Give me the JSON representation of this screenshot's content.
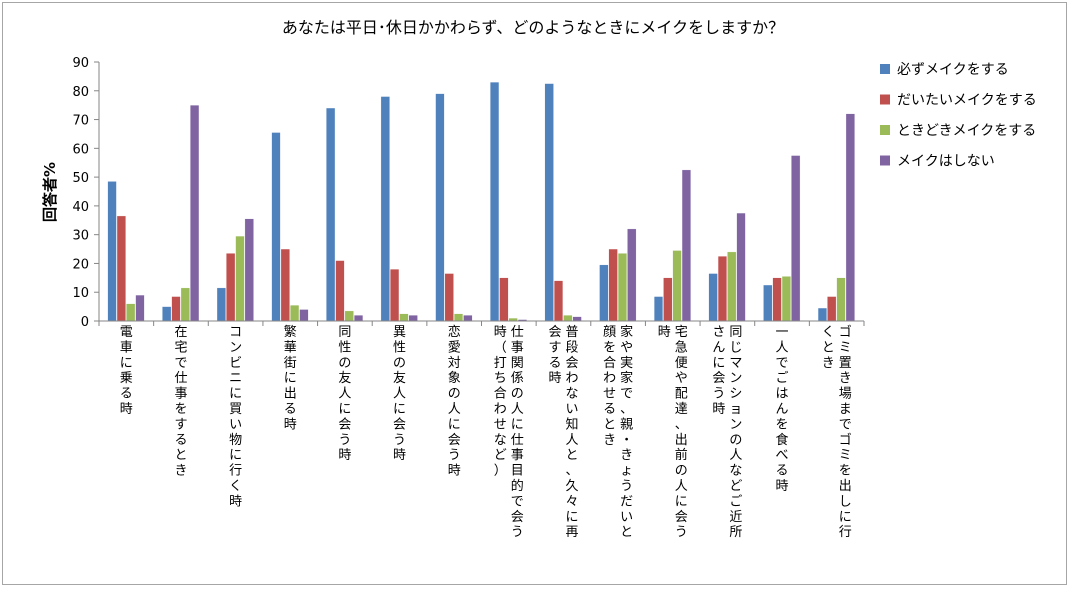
{
  "chart_data": {
    "type": "bar",
    "title": "あなたは平日･休日かかわらず、どのようなときにメイクをしますか？",
    "ylabel": "回答者%",
    "xlabel": "",
    "ylim": [
      0,
      90
    ],
    "yticks": [
      0,
      10,
      20,
      30,
      40,
      50,
      60,
      70,
      80,
      90
    ],
    "grid": false,
    "legend_position": "right",
    "categories": [
      "電車に乗る時",
      "在宅で仕事をするとき",
      "コンビニに買い物に行く時",
      "繁華街に出る時",
      "同性の友人に会う時",
      "異性の友人に会う時",
      "恋愛対象の人に会う時",
      "仕事関係の人に仕事目的で会う時（打ち合わせなど）",
      "普段会わない知人と、久々に再会する時",
      "家や実家で、親・きょうだいと顔を合わせるとき",
      "宅急便や配達、出前の人に会う時",
      "同じマンションの人などご近所さんに会う時",
      "一人でごはんを食べる時",
      "ゴミ置き場までゴミを出しに行くとき"
    ],
    "category_label_lines": [
      [
        "電車に乗る時"
      ],
      [
        "在宅で仕事をするとき"
      ],
      [
        "コンビニに買い物に行く時"
      ],
      [
        "繁華街に出る時"
      ],
      [
        "同性の友人に会う時"
      ],
      [
        "異性の友人に会う時"
      ],
      [
        "恋愛対象の人に会う時"
      ],
      [
        "仕事関係の人に仕事目的で会う",
        "時（打ち合わせなど）"
      ],
      [
        "普段会わない知人と、久々に再",
        "会する時"
      ],
      [
        "家や実家で、親・きょうだいと",
        "顔を合わせるとき"
      ],
      [
        "宅急便や配達、出前の人に会う",
        "時"
      ],
      [
        "同じマンションの人などご近所",
        "さんに会う時"
      ],
      [
        "一人でごはんを食べる時"
      ],
      [
        "ゴミ置き場までゴミを出しに行",
        "くとき"
      ]
    ],
    "series": [
      {
        "name": "必ずメイクをする",
        "color": "#4f81bd",
        "values": [
          48.5,
          5,
          11.5,
          65.5,
          74,
          78,
          79,
          83,
          82.5,
          19.5,
          8.5,
          16.5,
          12.5,
          4.5
        ]
      },
      {
        "name": "だいたいメイクをする",
        "color": "#c0504d",
        "values": [
          36.5,
          8.5,
          23.5,
          25,
          21,
          18,
          16.5,
          15,
          14,
          25,
          15,
          22.5,
          15,
          8.5
        ]
      },
      {
        "name": "ときどきメイクをする",
        "color": "#9bbb59",
        "values": [
          6,
          11.5,
          29.5,
          5.5,
          3.5,
          2.5,
          2.5,
          1,
          2,
          23.5,
          24.5,
          24,
          15.5,
          15
        ]
      },
      {
        "name": "メイクはしない",
        "color": "#8064a2",
        "values": [
          9,
          75,
          35.5,
          4,
          2,
          2,
          2,
          0.5,
          1.5,
          32,
          52.5,
          37.5,
          57.5,
          72
        ]
      }
    ]
  }
}
